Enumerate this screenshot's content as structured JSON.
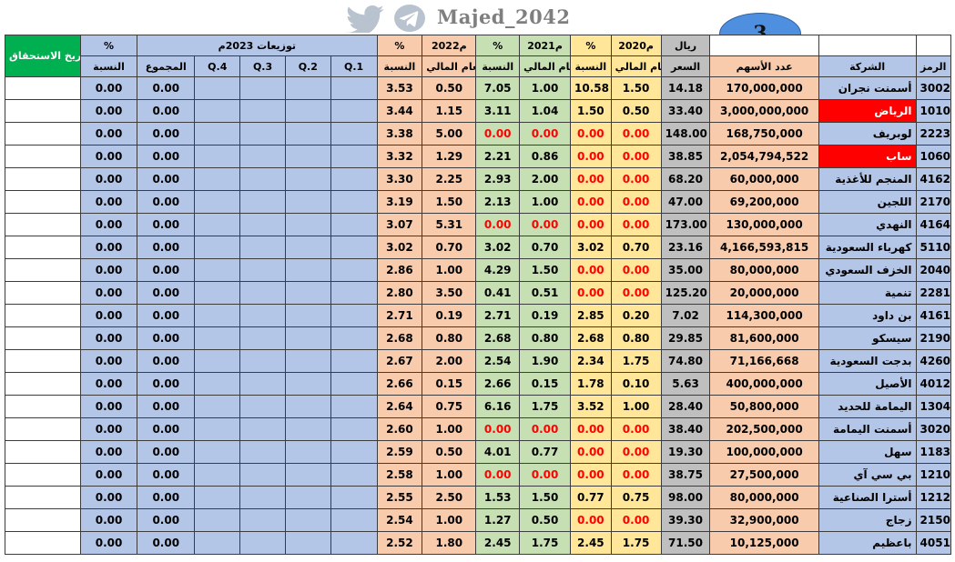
{
  "banner": {
    "handle": "Majed_2042",
    "page_number": "3"
  },
  "colors": {
    "blue": "#b4c6e7",
    "salmon": "#f8cbad",
    "green": "#c6e0b4",
    "yellow": "#ffe699",
    "gray": "#bfbfbf",
    "due_header": "#00b050",
    "highlight": "#ff0000"
  },
  "headers": {
    "due_date": "تاريخ الاستحقاق",
    "pct": "%",
    "dist2023": "توزيعات 2023م",
    "y2022": "2022م",
    "y2021": "2021م",
    "y2020": "2020م",
    "riyal": "ريال",
    "ratio": "النسبة",
    "total": "المجموع",
    "q4": "Q.4",
    "q3": "Q.3",
    "q2": "Q.2",
    "q1": "Q.1",
    "fiscal_year": "العام المالي",
    "price": "السعر",
    "shares": "عدد الأسهم",
    "company": "الشركة",
    "code": "الرمز"
  },
  "rows": [
    {
      "code": "3002",
      "company": "أسمنت نجران",
      "shares": "170,000,000",
      "price": "14.18",
      "fy2020": "1.50",
      "r2020": "10.58",
      "fy2021": "1.00",
      "r2021": "7.05",
      "fy2022": "0.50",
      "r2022": "3.53",
      "total": "0.00",
      "ratio": "0.00"
    },
    {
      "code": "1010",
      "company": "الرياض",
      "shares": "3,000,000,000",
      "price": "33.40",
      "fy2020": "0.50",
      "r2020": "1.50",
      "fy2021": "1.04",
      "r2021": "3.11",
      "fy2022": "1.15",
      "r2022": "3.44",
      "total": "0.00",
      "ratio": "0.00",
      "highlight": true
    },
    {
      "code": "2223",
      "company": "لوبريف",
      "shares": "168,750,000",
      "price": "148.00",
      "fy2020": "0.00",
      "r2020": "0.00",
      "fy2021": "0.00",
      "r2021": "0.00",
      "fy2022": "5.00",
      "r2022": "3.38",
      "total": "0.00",
      "ratio": "0.00"
    },
    {
      "code": "1060",
      "company": "ساب",
      "shares": "2,054,794,522",
      "price": "38.85",
      "fy2020": "0.00",
      "r2020": "0.00",
      "fy2021": "0.86",
      "r2021": "2.21",
      "fy2022": "1.29",
      "r2022": "3.32",
      "total": "0.00",
      "ratio": "0.00",
      "highlight": true
    },
    {
      "code": "4162",
      "company": "المنجم للأغذية",
      "shares": "60,000,000",
      "price": "68.20",
      "fy2020": "0.00",
      "r2020": "0.00",
      "fy2021": "2.00",
      "r2021": "2.93",
      "fy2022": "2.25",
      "r2022": "3.30",
      "total": "0.00",
      "ratio": "0.00"
    },
    {
      "code": "2170",
      "company": "اللجين",
      "shares": "69,200,000",
      "price": "47.00",
      "fy2020": "0.00",
      "r2020": "0.00",
      "fy2021": "1.00",
      "r2021": "2.13",
      "fy2022": "1.50",
      "r2022": "3.19",
      "total": "0.00",
      "ratio": "0.00"
    },
    {
      "code": "4164",
      "company": "النهدي",
      "shares": "130,000,000",
      "price": "173.00",
      "fy2020": "0.00",
      "r2020": "0.00",
      "fy2021": "0.00",
      "r2021": "0.00",
      "fy2022": "5.31",
      "r2022": "3.07",
      "total": "0.00",
      "ratio": "0.00"
    },
    {
      "code": "5110",
      "company": "كهرباء السعودية",
      "shares": "4,166,593,815",
      "price": "23.16",
      "fy2020": "0.70",
      "r2020": "3.02",
      "fy2021": "0.70",
      "r2021": "3.02",
      "fy2022": "0.70",
      "r2022": "3.02",
      "total": "0.00",
      "ratio": "0.00"
    },
    {
      "code": "2040",
      "company": "الخزف السعودي",
      "shares": "80,000,000",
      "price": "35.00",
      "fy2020": "0.00",
      "r2020": "0.00",
      "fy2021": "1.50",
      "r2021": "4.29",
      "fy2022": "1.00",
      "r2022": "2.86",
      "total": "0.00",
      "ratio": "0.00"
    },
    {
      "code": "2281",
      "company": "تنمية",
      "shares": "20,000,000",
      "price": "125.20",
      "fy2020": "0.00",
      "r2020": "0.00",
      "fy2021": "0.51",
      "r2021": "0.41",
      "fy2022": "3.50",
      "r2022": "2.80",
      "total": "0.00",
      "ratio": "0.00"
    },
    {
      "code": "4161",
      "company": "بن داود",
      "shares": "114,300,000",
      "price": "7.02",
      "fy2020": "0.20",
      "r2020": "2.85",
      "fy2021": "0.19",
      "r2021": "2.71",
      "fy2022": "0.19",
      "r2022": "2.71",
      "total": "0.00",
      "ratio": "0.00"
    },
    {
      "code": "2190",
      "company": "سيسكو",
      "shares": "81,600,000",
      "price": "29.85",
      "fy2020": "0.80",
      "r2020": "2.68",
      "fy2021": "0.80",
      "r2021": "2.68",
      "fy2022": "0.80",
      "r2022": "2.68",
      "total": "0.00",
      "ratio": "0.00"
    },
    {
      "code": "4260",
      "company": "بدجت السعودية",
      "shares": "71,166,668",
      "price": "74.80",
      "fy2020": "1.75",
      "r2020": "2.34",
      "fy2021": "1.90",
      "r2021": "2.54",
      "fy2022": "2.00",
      "r2022": "2.67",
      "total": "0.00",
      "ratio": "0.00"
    },
    {
      "code": "4012",
      "company": "الأصيل",
      "shares": "400,000,000",
      "price": "5.63",
      "fy2020": "0.10",
      "r2020": "1.78",
      "fy2021": "0.15",
      "r2021": "2.66",
      "fy2022": "0.15",
      "r2022": "2.66",
      "total": "0.00",
      "ratio": "0.00"
    },
    {
      "code": "1304",
      "company": "اليمامة للحديد",
      "shares": "50,800,000",
      "price": "28.40",
      "fy2020": "1.00",
      "r2020": "3.52",
      "fy2021": "1.75",
      "r2021": "6.16",
      "fy2022": "0.75",
      "r2022": "2.64",
      "total": "0.00",
      "ratio": "0.00"
    },
    {
      "code": "3020",
      "company": "أسمنت اليمامة",
      "shares": "202,500,000",
      "price": "38.40",
      "fy2020": "0.00",
      "r2020": "0.00",
      "fy2021": "0.00",
      "r2021": "0.00",
      "fy2022": "1.00",
      "r2022": "2.60",
      "total": "0.00",
      "ratio": "0.00"
    },
    {
      "code": "1183",
      "company": "سهل",
      "shares": "100,000,000",
      "price": "19.30",
      "fy2020": "0.00",
      "r2020": "0.00",
      "fy2021": "0.77",
      "r2021": "4.01",
      "fy2022": "0.50",
      "r2022": "2.59",
      "total": "0.00",
      "ratio": "0.00"
    },
    {
      "code": "1210",
      "company": "بي سي آي",
      "shares": "27,500,000",
      "price": "38.75",
      "fy2020": "0.00",
      "r2020": "0.00",
      "fy2021": "0.00",
      "r2021": "0.00",
      "fy2022": "1.00",
      "r2022": "2.58",
      "total": "0.00",
      "ratio": "0.00"
    },
    {
      "code": "1212",
      "company": "أسترا الصناعية",
      "shares": "80,000,000",
      "price": "98.00",
      "fy2020": "0.75",
      "r2020": "0.77",
      "fy2021": "1.50",
      "r2021": "1.53",
      "fy2022": "2.50",
      "r2022": "2.55",
      "total": "0.00",
      "ratio": "0.00"
    },
    {
      "code": "2150",
      "company": "زجاج",
      "shares": "32,900,000",
      "price": "39.30",
      "fy2020": "0.00",
      "r2020": "0.00",
      "fy2021": "0.50",
      "r2021": "1.27",
      "fy2022": "1.00",
      "r2022": "2.54",
      "total": "0.00",
      "ratio": "0.00"
    },
    {
      "code": "4051",
      "company": "باعظيم",
      "shares": "10,125,000",
      "price": "71.50",
      "fy2020": "1.75",
      "r2020": "2.45",
      "fy2021": "1.75",
      "r2021": "2.45",
      "fy2022": "1.80",
      "r2022": "2.52",
      "total": "0.00",
      "ratio": "0.00"
    }
  ]
}
